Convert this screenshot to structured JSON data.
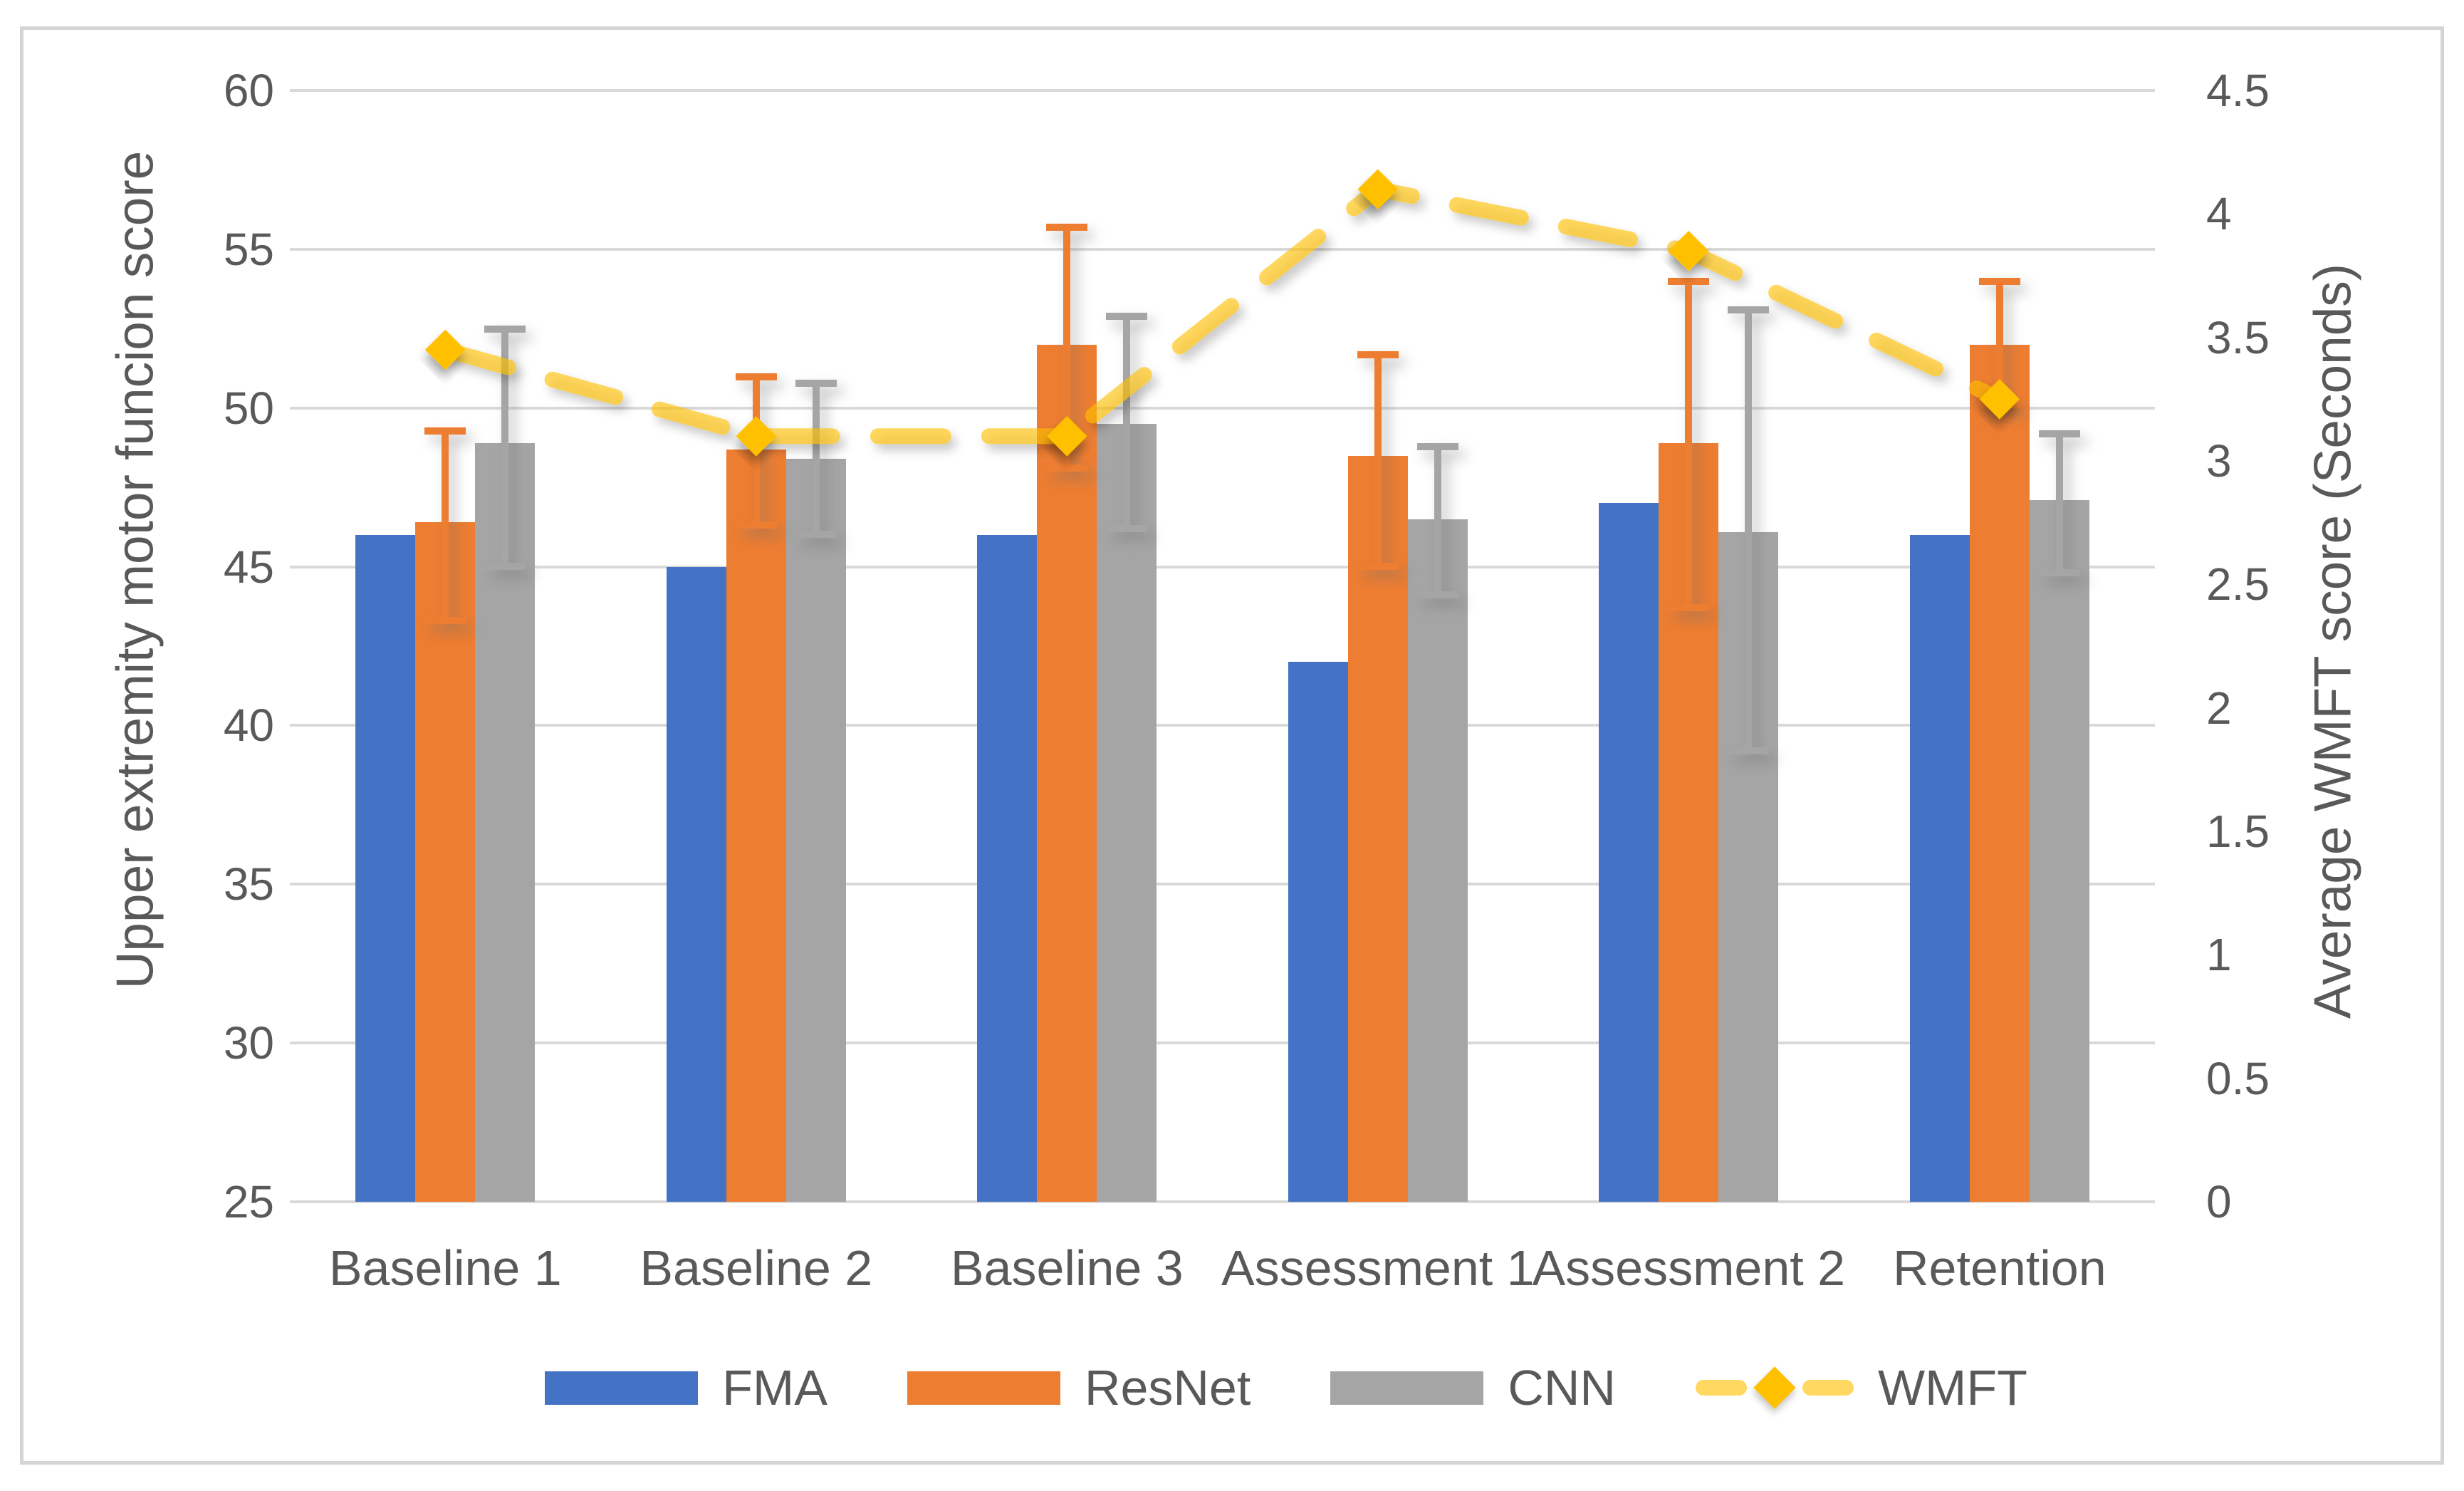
{
  "chart_data": {
    "type": "bar",
    "subtype": "grouped-bars-with-dual-axis-dashed-line",
    "categories": [
      "Baseline 1",
      "Baseline 2",
      "Baseline 3",
      "Assessment 1",
      "Assessment 2",
      "Retention"
    ],
    "series": [
      {
        "name": "FMA",
        "type": "bar",
        "axis": "left",
        "color": "#4472C4",
        "values": [
          46.0,
          45.0,
          46.0,
          42.0,
          47.0,
          46.0
        ]
      },
      {
        "name": "ResNet",
        "type": "bar",
        "axis": "left",
        "color": "#ED7D31",
        "values": [
          46.4,
          48.7,
          52.0,
          48.5,
          48.9,
          52.0
        ],
        "error_bars": [
          [
            43.2,
            49.4
          ],
          [
            46.2,
            51.1
          ],
          [
            48.0,
            55.8
          ],
          [
            44.9,
            51.8
          ],
          [
            43.6,
            54.1
          ],
          [
            50.0,
            54.1
          ]
        ]
      },
      {
        "name": "CNN",
        "type": "bar",
        "axis": "left",
        "color": "#A5A5A5",
        "values": [
          48.9,
          48.4,
          49.5,
          46.5,
          46.1,
          47.1
        ],
        "error_bars": [
          [
            44.9,
            52.6
          ],
          [
            45.9,
            50.9
          ],
          [
            46.1,
            53.0
          ],
          [
            44.0,
            48.9
          ],
          [
            39.1,
            53.2
          ],
          [
            44.7,
            49.3
          ]
        ]
      },
      {
        "name": "WMFT",
        "type": "line-dashed-diamond",
        "axis": "right",
        "color": "#FFC000",
        "line_opacity": 0.62,
        "values": [
          3.45,
          3.1,
          3.1,
          4.1,
          3.85,
          3.25
        ]
      }
    ],
    "left_axis": {
      "title": "Upper extremity motor funcion score",
      "min": 25,
      "max": 60,
      "step": 5,
      "ticks": [
        "60",
        "55",
        "50",
        "45",
        "40",
        "35",
        "30",
        "25"
      ]
    },
    "right_axis": {
      "title": "Average WMFT score (Seconds)",
      "min": 0,
      "max": 4.5,
      "step": 0.5,
      "ticks": [
        "4.5",
        "4",
        "3.5",
        "3",
        "2.5",
        "2",
        "1.5",
        "1",
        "0.5",
        "0"
      ]
    },
    "legend_position": "bottom",
    "grid": true,
    "style": {
      "grid_color": "#D9D9D9",
      "text_color": "#595959",
      "frame_border_color": "#D5D5D5",
      "background": "#FFFFFF"
    }
  }
}
